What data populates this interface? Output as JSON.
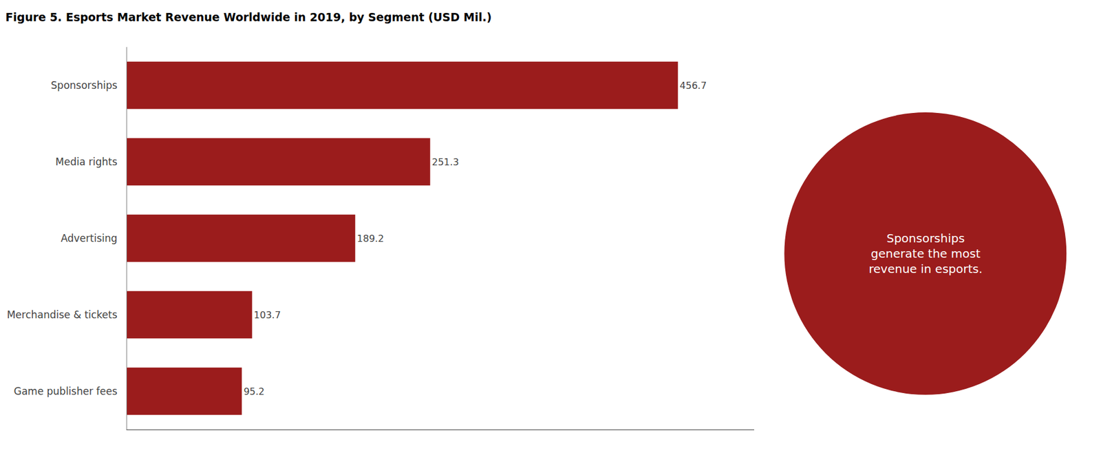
{
  "chart_data": {
    "type": "bar",
    "orientation": "horizontal",
    "title": "Figure 5. Esports Market Revenue Worldwide in 2019, by Segment (USD Mil.)",
    "categories": [
      "Game publisher fees",
      "Merchandise & tickets",
      "Advertising",
      "Media rights",
      "Sponsorships"
    ],
    "values": [
      95.2,
      103.7,
      189.2,
      251.3,
      456.7
    ],
    "color": "#9b1c1c",
    "xlim": [
      0,
      520
    ],
    "data_labels": true,
    "tick_labels": "y",
    "grid": false,
    "annotations": [
      "Sponsorships\ngenerate the most\nrevenue in esports."
    ]
  }
}
